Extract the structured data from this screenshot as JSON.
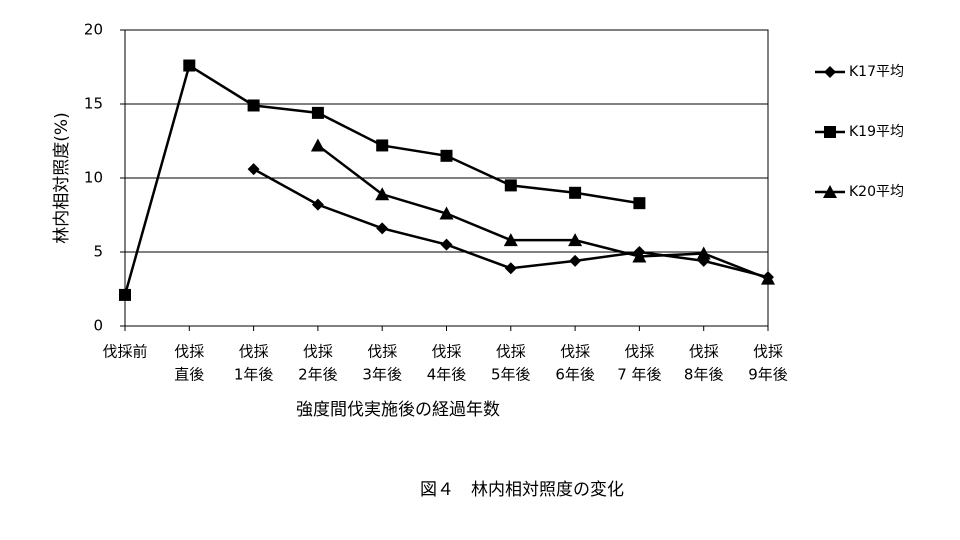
{
  "chart_data": {
    "type": "line",
    "ylabel": "林内相対照度(%)",
    "xlabel": "強度間伐実施後の経過年数",
    "caption": "図４　林内相対照度の変化",
    "categories": [
      [
        "伐採前"
      ],
      [
        "伐採",
        "直後"
      ],
      [
        "伐採",
        "1年後"
      ],
      [
        "伐採",
        "2年後"
      ],
      [
        "伐採",
        "3年後"
      ],
      [
        "伐採",
        "4年後"
      ],
      [
        "伐採",
        "5年後"
      ],
      [
        "伐採",
        "6年後"
      ],
      [
        "伐採",
        "7 年後"
      ],
      [
        "伐採",
        "8年後"
      ],
      [
        "伐採",
        "9年後"
      ]
    ],
    "series": [
      {
        "name": "K17平均",
        "color": "#000000",
        "marker": "diamond",
        "values": [
          null,
          null,
          10.6,
          8.2,
          6.6,
          5.5,
          3.9,
          4.4,
          5.0,
          4.4,
          3.3
        ]
      },
      {
        "name": "K19平均",
        "color": "#000000",
        "marker": "square",
        "values": [
          2.1,
          17.6,
          14.9,
          14.4,
          12.2,
          11.5,
          9.5,
          9.0,
          8.3,
          null,
          null
        ]
      },
      {
        "name": "K20平均",
        "color": "#000000",
        "marker": "triangle",
        "values": [
          null,
          null,
          null,
          12.2,
          8.9,
          7.6,
          5.8,
          5.8,
          4.7,
          4.9,
          3.2
        ]
      }
    ],
    "ylim": [
      0,
      20
    ],
    "yticks": [
      0,
      5,
      10,
      15,
      20
    ],
    "grid": true
  }
}
